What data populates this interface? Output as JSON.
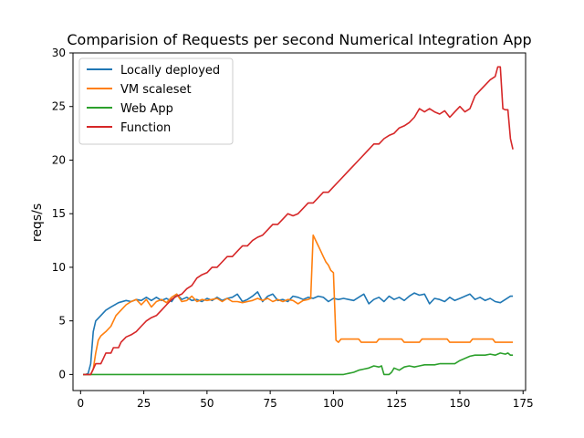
{
  "chart_data": {
    "type": "line",
    "title": "Comparision of Requests per second Numerical Integration App",
    "xlabel": "",
    "ylabel": "reqs/s",
    "xlim": [
      -3,
      176
    ],
    "ylim": [
      -1.5,
      30
    ],
    "xticks": [
      0,
      25,
      50,
      75,
      100,
      125,
      150,
      175
    ],
    "yticks": [
      0,
      5,
      10,
      15,
      20,
      25,
      30
    ],
    "legend_position": "top-left",
    "grid": false,
    "series": [
      {
        "name": "Locally deployed",
        "color": "#1f77b4",
        "points": [
          [
            1,
            0
          ],
          [
            2,
            0
          ],
          [
            3,
            0.1
          ],
          [
            4,
            1
          ],
          [
            5,
            4
          ],
          [
            6,
            5
          ],
          [
            8,
            5.5
          ],
          [
            10,
            6
          ],
          [
            12,
            6.3
          ],
          [
            15,
            6.7
          ],
          [
            18,
            6.9
          ],
          [
            20,
            6.8
          ],
          [
            22,
            7
          ],
          [
            24,
            6.9
          ],
          [
            26,
            7.2
          ],
          [
            28,
            6.9
          ],
          [
            30,
            7.2
          ],
          [
            32,
            6.9
          ],
          [
            34,
            7.1
          ],
          [
            36,
            6.8
          ],
          [
            38,
            7.5
          ],
          [
            40,
            7
          ],
          [
            42,
            7.2
          ],
          [
            44,
            6.9
          ],
          [
            46,
            7
          ],
          [
            48,
            6.8
          ],
          [
            50,
            7.1
          ],
          [
            52,
            6.9
          ],
          [
            54,
            7.2
          ],
          [
            56,
            6.9
          ],
          [
            58,
            7.1
          ],
          [
            60,
            7.2
          ],
          [
            62,
            7.5
          ],
          [
            64,
            6.8
          ],
          [
            66,
            7
          ],
          [
            68,
            7.3
          ],
          [
            70,
            7.7
          ],
          [
            72,
            6.8
          ],
          [
            74,
            7.3
          ],
          [
            76,
            7.5
          ],
          [
            78,
            6.9
          ],
          [
            80,
            7
          ],
          [
            82,
            6.8
          ],
          [
            84,
            7.3
          ],
          [
            86,
            7.2
          ],
          [
            88,
            7
          ],
          [
            90,
            7.2
          ],
          [
            92,
            7.1
          ],
          [
            94,
            7.3
          ],
          [
            96,
            7.2
          ],
          [
            98,
            6.8
          ],
          [
            100,
            7.1
          ],
          [
            102,
            7
          ],
          [
            104,
            7.1
          ],
          [
            106,
            7
          ],
          [
            108,
            6.9
          ],
          [
            110,
            7.2
          ],
          [
            112,
            7.5
          ],
          [
            114,
            6.6
          ],
          [
            116,
            7
          ],
          [
            118,
            7.2
          ],
          [
            120,
            6.8
          ],
          [
            122,
            7.3
          ],
          [
            124,
            7
          ],
          [
            126,
            7.2
          ],
          [
            128,
            6.9
          ],
          [
            130,
            7.3
          ],
          [
            132,
            7.6
          ],
          [
            134,
            7.4
          ],
          [
            136,
            7.5
          ],
          [
            138,
            6.6
          ],
          [
            140,
            7.1
          ],
          [
            142,
            7
          ],
          [
            144,
            6.8
          ],
          [
            146,
            7.2
          ],
          [
            148,
            6.9
          ],
          [
            150,
            7.1
          ],
          [
            152,
            7.3
          ],
          [
            154,
            7.5
          ],
          [
            156,
            7
          ],
          [
            158,
            7.2
          ],
          [
            160,
            6.9
          ],
          [
            162,
            7.1
          ],
          [
            164,
            6.8
          ],
          [
            166,
            6.7
          ],
          [
            168,
            7
          ],
          [
            170,
            7.3
          ],
          [
            171,
            7.3
          ]
        ]
      },
      {
        "name": "VM scaleset",
        "color": "#ff7f0e",
        "points": [
          [
            1,
            0
          ],
          [
            4,
            0
          ],
          [
            5,
            0.5
          ],
          [
            6,
            2
          ],
          [
            7,
            3.2
          ],
          [
            8,
            3.6
          ],
          [
            10,
            4
          ],
          [
            12,
            4.5
          ],
          [
            14,
            5.5
          ],
          [
            16,
            6
          ],
          [
            18,
            6.5
          ],
          [
            20,
            6.8
          ],
          [
            22,
            7
          ],
          [
            24,
            6.5
          ],
          [
            26,
            7
          ],
          [
            28,
            6.3
          ],
          [
            30,
            6.8
          ],
          [
            32,
            7
          ],
          [
            34,
            6.7
          ],
          [
            36,
            7.2
          ],
          [
            38,
            7.5
          ],
          [
            40,
            6.8
          ],
          [
            42,
            6.9
          ],
          [
            44,
            7.3
          ],
          [
            46,
            6.8
          ],
          [
            48,
            7
          ],
          [
            50,
            6.9
          ],
          [
            52,
            7
          ],
          [
            54,
            7.1
          ],
          [
            56,
            6.8
          ],
          [
            58,
            7.1
          ],
          [
            60,
            6.8
          ],
          [
            62,
            6.8
          ],
          [
            64,
            6.7
          ],
          [
            66,
            6.8
          ],
          [
            68,
            6.9
          ],
          [
            70,
            7.1
          ],
          [
            72,
            6.9
          ],
          [
            74,
            7.1
          ],
          [
            76,
            6.8
          ],
          [
            78,
            7
          ],
          [
            80,
            6.8
          ],
          [
            82,
            7
          ],
          [
            84,
            6.9
          ],
          [
            86,
            6.6
          ],
          [
            88,
            6.9
          ],
          [
            90,
            7
          ],
          [
            91,
            7.1
          ],
          [
            92,
            13
          ],
          [
            93,
            12.5
          ],
          [
            94,
            12
          ],
          [
            95,
            11.5
          ],
          [
            96,
            11
          ],
          [
            97,
            10.5
          ],
          [
            98,
            10.2
          ],
          [
            99,
            9.7
          ],
          [
            100,
            9.5
          ],
          [
            101,
            3.2
          ],
          [
            102,
            3
          ],
          [
            103,
            3.3
          ],
          [
            110,
            3.3
          ],
          [
            111,
            3
          ],
          [
            117,
            3
          ],
          [
            118,
            3.3
          ],
          [
            127,
            3.3
          ],
          [
            128,
            3
          ],
          [
            134,
            3
          ],
          [
            135,
            3.3
          ],
          [
            145,
            3.3
          ],
          [
            146,
            3
          ],
          [
            154,
            3
          ],
          [
            155,
            3.3
          ],
          [
            163,
            3.3
          ],
          [
            164,
            3
          ],
          [
            171,
            3
          ]
        ]
      },
      {
        "name": "Web App",
        "color": "#2ca02c",
        "points": [
          [
            1,
            0
          ],
          [
            104,
            0
          ],
          [
            106,
            0.1
          ],
          [
            108,
            0.2
          ],
          [
            110,
            0.4
          ],
          [
            112,
            0.5
          ],
          [
            114,
            0.6
          ],
          [
            116,
            0.8
          ],
          [
            118,
            0.7
          ],
          [
            119,
            0.8
          ],
          [
            120,
            0
          ],
          [
            122,
            0
          ],
          [
            123,
            0.2
          ],
          [
            124,
            0.6
          ],
          [
            126,
            0.4
          ],
          [
            128,
            0.7
          ],
          [
            130,
            0.8
          ],
          [
            132,
            0.7
          ],
          [
            134,
            0.8
          ],
          [
            136,
            0.9
          ],
          [
            140,
            0.9
          ],
          [
            142,
            1
          ],
          [
            148,
            1
          ],
          [
            150,
            1.3
          ],
          [
            152,
            1.5
          ],
          [
            154,
            1.7
          ],
          [
            156,
            1.8
          ],
          [
            160,
            1.8
          ],
          [
            162,
            1.9
          ],
          [
            164,
            1.8
          ],
          [
            166,
            2
          ],
          [
            168,
            1.9
          ],
          [
            169,
            2
          ],
          [
            170,
            1.8
          ],
          [
            171,
            1.8
          ]
        ]
      },
      {
        "name": "Function",
        "color": "#d62728",
        "points": [
          [
            1,
            0
          ],
          [
            4,
            0
          ],
          [
            5,
            0.5
          ],
          [
            6,
            1
          ],
          [
            8,
            1
          ],
          [
            9,
            1.5
          ],
          [
            10,
            2
          ],
          [
            12,
            2
          ],
          [
            13,
            2.5
          ],
          [
            15,
            2.5
          ],
          [
            16,
            3
          ],
          [
            18,
            3.5
          ],
          [
            20,
            3.7
          ],
          [
            22,
            4
          ],
          [
            24,
            4.5
          ],
          [
            26,
            5
          ],
          [
            28,
            5.3
          ],
          [
            30,
            5.5
          ],
          [
            32,
            6
          ],
          [
            34,
            6.5
          ],
          [
            36,
            7
          ],
          [
            38,
            7.3
          ],
          [
            40,
            7.5
          ],
          [
            42,
            8
          ],
          [
            44,
            8.3
          ],
          [
            46,
            9
          ],
          [
            48,
            9.3
          ],
          [
            50,
            9.5
          ],
          [
            52,
            10
          ],
          [
            54,
            10
          ],
          [
            56,
            10.5
          ],
          [
            58,
            11
          ],
          [
            60,
            11
          ],
          [
            62,
            11.5
          ],
          [
            64,
            12
          ],
          [
            66,
            12
          ],
          [
            68,
            12.5
          ],
          [
            70,
            12.8
          ],
          [
            72,
            13
          ],
          [
            74,
            13.5
          ],
          [
            76,
            14
          ],
          [
            78,
            14
          ],
          [
            80,
            14.5
          ],
          [
            82,
            15
          ],
          [
            84,
            14.8
          ],
          [
            86,
            15
          ],
          [
            88,
            15.5
          ],
          [
            90,
            16
          ],
          [
            92,
            16
          ],
          [
            94,
            16.5
          ],
          [
            96,
            17
          ],
          [
            98,
            17
          ],
          [
            100,
            17.5
          ],
          [
            102,
            18
          ],
          [
            104,
            18.5
          ],
          [
            106,
            19
          ],
          [
            108,
            19.5
          ],
          [
            110,
            20
          ],
          [
            112,
            20.5
          ],
          [
            114,
            21
          ],
          [
            116,
            21.5
          ],
          [
            118,
            21.5
          ],
          [
            120,
            22
          ],
          [
            122,
            22.3
          ],
          [
            124,
            22.5
          ],
          [
            126,
            23
          ],
          [
            128,
            23.2
          ],
          [
            130,
            23.5
          ],
          [
            132,
            24
          ],
          [
            134,
            24.8
          ],
          [
            136,
            24.5
          ],
          [
            138,
            24.8
          ],
          [
            140,
            24.5
          ],
          [
            142,
            24.3
          ],
          [
            144,
            24.6
          ],
          [
            146,
            24
          ],
          [
            148,
            24.5
          ],
          [
            150,
            25
          ],
          [
            152,
            24.5
          ],
          [
            154,
            24.8
          ],
          [
            156,
            26
          ],
          [
            158,
            26.5
          ],
          [
            160,
            27
          ],
          [
            162,
            27.5
          ],
          [
            164,
            27.8
          ],
          [
            165,
            28.7
          ],
          [
            166,
            28.7
          ],
          [
            167,
            24.8
          ],
          [
            168,
            24.7
          ],
          [
            169,
            24.7
          ],
          [
            170,
            22
          ],
          [
            171,
            21
          ]
        ]
      }
    ]
  }
}
